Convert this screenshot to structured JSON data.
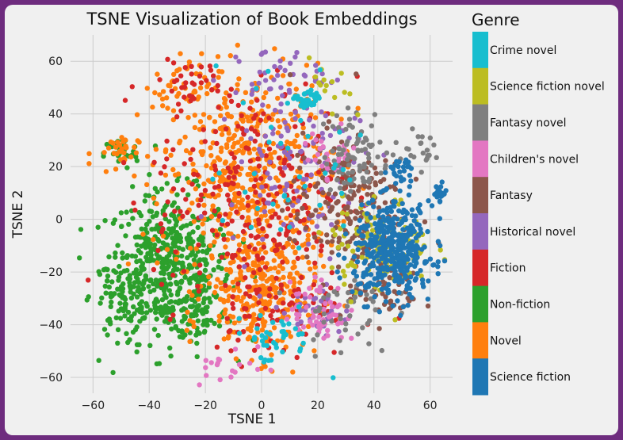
{
  "chart_data": {
    "type": "scatter",
    "title": "TSNE Visualization of Book Embeddings",
    "xlabel": "TSNE 1",
    "ylabel": "TSNE 2",
    "xlim": [
      -68,
      68
    ],
    "ylim": [
      -66,
      70
    ],
    "xticks": [
      -60,
      -40,
      -20,
      0,
      20,
      40,
      60
    ],
    "yticks": [
      -60,
      -40,
      -20,
      0,
      20,
      40,
      60
    ],
    "grid": true,
    "legend": {
      "title": "Genre",
      "position": "right",
      "entries": [
        {
          "label": "Crime novel",
          "color": "#17becf"
        },
        {
          "label": "Science fiction novel",
          "color": "#bcbd22"
        },
        {
          "label": "Fantasy novel",
          "color": "#7f7f7f"
        },
        {
          "label": "Children's novel",
          "color": "#e377c2"
        },
        {
          "label": "Fantasy",
          "color": "#8c564b"
        },
        {
          "label": "Historical novel",
          "color": "#9467bd"
        },
        {
          "label": "Fiction",
          "color": "#d62728"
        },
        {
          "label": "Non-fiction",
          "color": "#2ca02c"
        },
        {
          "label": "Novel",
          "color": "#ff7f0e"
        },
        {
          "label": "Science fiction",
          "color": "#1f77b4"
        }
      ]
    },
    "series": [
      {
        "name": "Non-fiction",
        "color": "#2ca02c",
        "clusters": [
          {
            "cx": -33,
            "cy": -18,
            "sx": 11,
            "sy": 14,
            "n": 520
          },
          {
            "cx": -50,
            "cy": -30,
            "sx": 5,
            "sy": 7,
            "n": 60
          },
          {
            "cx": -50,
            "cy": 25,
            "sx": 3,
            "sy": 3,
            "n": 40
          },
          {
            "cx": -22,
            "cy": -35,
            "sx": 5,
            "sy": 6,
            "n": 60
          }
        ]
      },
      {
        "name": "Novel",
        "color": "#ff7f0e",
        "clusters": [
          {
            "cx": -5,
            "cy": 18,
            "sx": 15,
            "sy": 20,
            "n": 520
          },
          {
            "cx": 0,
            "cy": -28,
            "sx": 10,
            "sy": 12,
            "n": 280
          },
          {
            "cx": -52,
            "cy": 25,
            "sx": 4,
            "sy": 4,
            "n": 30
          },
          {
            "cx": -30,
            "cy": 50,
            "sx": 6,
            "sy": 4,
            "n": 30
          }
        ]
      },
      {
        "name": "Fiction",
        "color": "#d62728",
        "clusters": [
          {
            "cx": -2,
            "cy": 10,
            "sx": 18,
            "sy": 22,
            "n": 260
          },
          {
            "cx": 5,
            "cy": -30,
            "sx": 12,
            "sy": 12,
            "n": 80
          },
          {
            "cx": -25,
            "cy": 52,
            "sx": 6,
            "sy": 4,
            "n": 30
          }
        ]
      },
      {
        "name": "Historical novel",
        "color": "#9467bd",
        "clusters": [
          {
            "cx": 12,
            "cy": 25,
            "sx": 12,
            "sy": 18,
            "n": 120
          },
          {
            "cx": 20,
            "cy": -35,
            "sx": 6,
            "sy": 5,
            "n": 40
          },
          {
            "cx": 5,
            "cy": 55,
            "sx": 8,
            "sy": 5,
            "n": 30
          }
        ]
      },
      {
        "name": "Fantasy",
        "color": "#8c564b",
        "clusters": [
          {
            "cx": 30,
            "cy": 5,
            "sx": 10,
            "sy": 14,
            "n": 200
          },
          {
            "cx": 45,
            "cy": -28,
            "sx": 6,
            "sy": 6,
            "n": 50
          }
        ]
      },
      {
        "name": "Children's novel",
        "color": "#e377c2",
        "clusters": [
          {
            "cx": 20,
            "cy": -35,
            "sx": 5,
            "sy": 6,
            "n": 60
          },
          {
            "cx": 25,
            "cy": 25,
            "sx": 5,
            "sy": 5,
            "n": 30
          },
          {
            "cx": -10,
            "cy": -55,
            "sx": 8,
            "sy": 4,
            "n": 20
          }
        ]
      },
      {
        "name": "Fantasy novel",
        "color": "#7f7f7f",
        "clusters": [
          {
            "cx": 34,
            "cy": 25,
            "sx": 6,
            "sy": 8,
            "n": 80
          },
          {
            "cx": 55,
            "cy": 27,
            "sx": 3,
            "sy": 3,
            "n": 20
          },
          {
            "cx": 30,
            "cy": -35,
            "sx": 8,
            "sy": 8,
            "n": 40
          }
        ]
      },
      {
        "name": "Science fiction novel",
        "color": "#bcbd22",
        "clusters": [
          {
            "cx": 42,
            "cy": -10,
            "sx": 9,
            "sy": 9,
            "n": 110
          },
          {
            "cx": 25,
            "cy": 48,
            "sx": 4,
            "sy": 6,
            "n": 15
          }
        ]
      },
      {
        "name": "Science fiction",
        "color": "#1f77b4",
        "clusters": [
          {
            "cx": 47,
            "cy": -12,
            "sx": 7,
            "sy": 9,
            "n": 420
          },
          {
            "cx": 63,
            "cy": 10,
            "sx": 1.5,
            "sy": 1.5,
            "n": 25
          },
          {
            "cx": 50,
            "cy": 18,
            "sx": 3,
            "sy": 3,
            "n": 25
          }
        ]
      },
      {
        "name": "Crime novel",
        "color": "#17becf",
        "clusters": [
          {
            "cx": 16,
            "cy": 45,
            "sx": 2,
            "sy": 2,
            "n": 30
          },
          {
            "cx": 5,
            "cy": -45,
            "sx": 8,
            "sy": 5,
            "n": 40
          },
          {
            "cx": 10,
            "cy": 20,
            "sx": 15,
            "sy": 20,
            "n": 40
          }
        ]
      }
    ]
  }
}
